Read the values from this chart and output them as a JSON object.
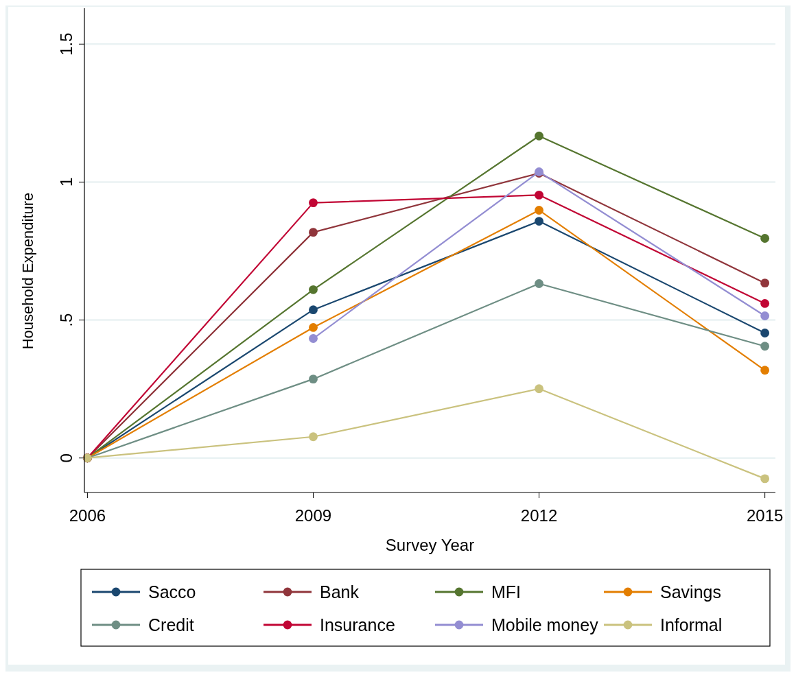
{
  "chart_data": {
    "type": "line",
    "xlabel": "Survey Year",
    "ylabel": "Household Expenditure",
    "x": [
      2006,
      2009,
      2012,
      2015
    ],
    "xlim": [
      2005.96,
      2015.14
    ],
    "xticks": [
      2006,
      2009,
      2012,
      2015
    ],
    "ylim": [
      -0.125,
      1.63
    ],
    "yticks": [
      0,
      {
        "value": 0.5,
        "label": ".5"
      },
      1,
      1.5
    ],
    "grid": "y",
    "legend": "bottom",
    "marker": "circle",
    "line_style": "solid",
    "series": [
      {
        "name": "Sacco",
        "color": "#1a476f",
        "values": [
          0,
          0.537,
          0.858,
          0.453
        ]
      },
      {
        "name": "Bank",
        "color": "#90353b",
        "values": [
          0,
          0.818,
          1.032,
          0.634
        ]
      },
      {
        "name": "MFI",
        "color": "#55752f",
        "values": [
          0,
          0.61,
          1.167,
          0.796
        ]
      },
      {
        "name": "Savings",
        "color": "#e37e00",
        "values": [
          0,
          0.473,
          0.898,
          0.318
        ]
      },
      {
        "name": "Credit",
        "color": "#6e8e84",
        "values": [
          0,
          0.286,
          0.632,
          0.405
        ]
      },
      {
        "name": "Insurance",
        "color": "#c10534",
        "values": [
          0,
          0.925,
          0.953,
          0.56
        ]
      },
      {
        "name": "Mobile money",
        "color": "#938dd2",
        "values": [
          null,
          0.433,
          1.037,
          0.515
        ]
      },
      {
        "name": "Informal",
        "color": "#cac27e",
        "values": [
          0,
          0.077,
          0.251,
          -0.075
        ]
      }
    ]
  }
}
